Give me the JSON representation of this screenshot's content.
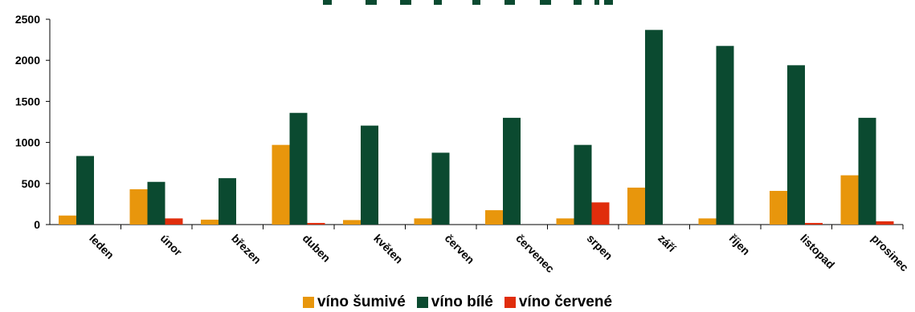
{
  "chart_data": {
    "type": "bar",
    "title": "",
    "xlabel": "",
    "ylabel": "",
    "ylim": [
      0,
      2500
    ],
    "yticks": [
      0,
      500,
      1000,
      1500,
      2000,
      2500
    ],
    "ytick_labels": [
      "0",
      "500",
      "1000",
      "1500",
      "2000",
      "2500"
    ],
    "grid": false,
    "legend_position": "bottom",
    "categories": [
      "leden",
      "únor",
      "březen",
      "duben",
      "květen",
      "červen",
      "červenec",
      "srpen",
      "září",
      "říjen",
      "listopad",
      "prosinec"
    ],
    "series": [
      {
        "name": "víno šumivé",
        "color": "#E8960C",
        "values": [
          110,
          430,
          60,
          970,
          55,
          75,
          175,
          75,
          450,
          75,
          410,
          600
        ]
      },
      {
        "name": "víno bílé",
        "color": "#0B4A30",
        "values": [
          835,
          520,
          565,
          1360,
          1205,
          875,
          1300,
          970,
          2370,
          2175,
          1940,
          1300
        ]
      },
      {
        "name": "víno červené",
        "color": "#E02D0C",
        "values": [
          0,
          75,
          0,
          20,
          0,
          0,
          0,
          270,
          0,
          0,
          20,
          40
        ]
      }
    ]
  }
}
